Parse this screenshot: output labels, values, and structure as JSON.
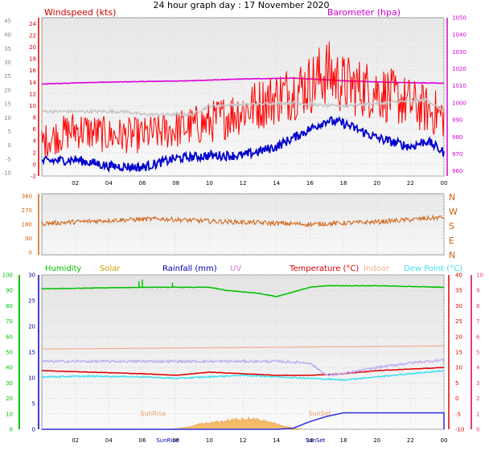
{
  "title": "24 hour graph day : 17 November 2020",
  "colors": {
    "wind": "#ff0000",
    "gust": "#0000cc",
    "baro": "#dd00dd",
    "avg": "#c8c8c8",
    "dir": "#d06010",
    "hum": "#00c000",
    "solar": "#c8a000",
    "rain": "#0000aa",
    "uv": "#e080e0",
    "temp": "#dd0000",
    "indoor": "#f0b090",
    "dew": "#40e0f0",
    "leftAxis": "#d00000",
    "rightAxis": "#d000d0",
    "panelBg": "#f0f0f0"
  },
  "chart_data": [
    {
      "type": "line",
      "title": "24 hour graph day : 17 November 2020",
      "x_ticks": [
        "02",
        "04",
        "06",
        "08",
        "10",
        "12",
        "14",
        "16",
        "18",
        "20",
        "22",
        "00"
      ],
      "left_axis": {
        "label": "Windspeed (kts)",
        "ticks": [
          "-2",
          "0",
          "2",
          "4",
          "6",
          "8",
          "10",
          "12",
          "14",
          "16",
          "18",
          "20",
          "22",
          "24"
        ],
        "range": [
          -2,
          25
        ]
      },
      "right_axis": {
        "label": "Barometer (hpa)",
        "ticks": [
          "960",
          "970",
          "980",
          "990",
          "1000",
          "1010",
          "1020",
          "1030",
          "1040",
          "1050"
        ],
        "range": [
          957,
          1050
        ]
      },
      "outer_left_ticks": [
        "-10",
        "-5",
        "0",
        "5",
        "10",
        "15",
        "20",
        "25",
        "30",
        "35",
        "40",
        "45"
      ],
      "series": [
        {
          "name": "Barometer",
          "axis": "right",
          "x": [
            0,
            3,
            6,
            9,
            12,
            15,
            18,
            21,
            24
          ],
          "y": [
            1011,
            1012,
            1012.5,
            1013,
            1014,
            1014.5,
            1013,
            1012,
            1011.5
          ]
        },
        {
          "name": "Windspeed",
          "axis": "left",
          "x": [
            0,
            2,
            4,
            6,
            8,
            10,
            12,
            14,
            16,
            17,
            18,
            20,
            22,
            24
          ],
          "y": [
            3,
            5,
            4,
            4,
            5,
            6,
            8,
            10,
            12,
            14,
            12,
            11,
            9,
            7
          ]
        },
        {
          "name": "Average",
          "axis": "left",
          "x": [
            0,
            5,
            6,
            9,
            10,
            15,
            17,
            18,
            23,
            24
          ],
          "y": [
            9,
            9,
            8.5,
            8.5,
            10,
            10.5,
            10,
            10,
            11,
            9
          ]
        },
        {
          "name": "Gust",
          "axis": "left",
          "x": [
            0,
            2,
            4,
            6,
            8,
            10,
            12,
            14,
            16,
            17,
            18,
            20,
            22,
            23,
            24
          ],
          "y": [
            0.5,
            0.8,
            -0.3,
            -0.5,
            1,
            1.5,
            1.5,
            3,
            6,
            7.5,
            7,
            4.5,
            3,
            4,
            2
          ]
        }
      ]
    },
    {
      "type": "line",
      "x_ticks": [],
      "left_ticks": [
        "0",
        "90",
        "180",
        "270",
        "360"
      ],
      "right_ticks": [
        "N",
        "W",
        "S",
        "E",
        "N"
      ],
      "range": [
        0,
        360
      ],
      "series": [
        {
          "name": "Wind Direction",
          "x": [
            0,
            4,
            7,
            10,
            13,
            16,
            20,
            24
          ],
          "y": [
            185,
            205,
            215,
            200,
            190,
            180,
            195,
            225
          ]
        }
      ]
    },
    {
      "type": "line",
      "x_ticks": [
        "02",
        "04",
        "06",
        "08",
        "10",
        "12",
        "14",
        "16",
        "18",
        "20",
        "22",
        "00"
      ],
      "legend": [
        "Humidity",
        "Solar",
        "Rainfall (mm)",
        "UV",
        "Temperature (°C)",
        "Indoor",
        "Dew Point (°C)"
      ],
      "left_axis": {
        "ticks": [
          "0",
          "5",
          "10",
          "15",
          "20",
          "25",
          "30"
        ],
        "range": [
          0,
          30
        ]
      },
      "outer_left_ticks": [
        "0",
        "10",
        "20",
        "30",
        "40",
        "50",
        "60",
        "70",
        "80",
        "90",
        "100"
      ],
      "right_axis": {
        "ticks": [
          "-10",
          "-5",
          "0",
          "5",
          "10",
          "15",
          "20",
          "25",
          "30",
          "35",
          "40"
        ],
        "range": [
          -10,
          40
        ]
      },
      "outer_right_ticks": [
        "0",
        "1",
        "2",
        "3",
        "4",
        "5",
        "6",
        "7",
        "8",
        "9",
        "10"
      ],
      "annotations": {
        "sunrise": "SunRise",
        "sunset": "SunSet",
        "sunrise_hour": 7.5,
        "sunset_hour": 16.3
      },
      "series": [
        {
          "name": "Humidity",
          "axis": "pct",
          "x": [
            0,
            6,
            8,
            10,
            11,
            12,
            13,
            14,
            15,
            16,
            17,
            18,
            20,
            24
          ],
          "y": [
            91,
            92,
            92,
            92,
            90,
            89,
            88,
            86,
            89,
            92,
            93,
            93,
            93,
            92
          ]
        },
        {
          "name": "Indoor",
          "axis": "temp",
          "x": [
            0,
            24
          ],
          "y": [
            16,
            17
          ]
        },
        {
          "name": "Temperature (°C)",
          "axis": "temp",
          "x": [
            0,
            3,
            6,
            8,
            10,
            12,
            14,
            16,
            18,
            20,
            22,
            24
          ],
          "y": [
            9,
            8.5,
            8,
            7.5,
            8.5,
            8,
            7.5,
            7.5,
            8,
            9,
            9.5,
            10
          ]
        },
        {
          "name": "Dew Point (°C)",
          "axis": "temp",
          "x": [
            0,
            3,
            6,
            8,
            10,
            12,
            14,
            16,
            18,
            20,
            22,
            24
          ],
          "y": [
            7,
            7.2,
            7,
            6.5,
            7,
            7.5,
            7,
            6.5,
            6,
            7,
            8,
            9
          ]
        },
        {
          "name": "UV",
          "axis": "uv",
          "x": [
            0,
            12,
            14,
            16,
            17,
            18,
            20,
            22,
            24
          ],
          "y": [
            4.4,
            4.4,
            4.4,
            4.3,
            3.5,
            3.6,
            4.0,
            4.3,
            4.5
          ]
        },
        {
          "name": "Rainfall (mm)",
          "axis": "rain",
          "x": [
            0,
            14,
            15,
            16,
            17,
            18,
            24
          ],
          "y": [
            0,
            0,
            0.2,
            1.5,
            2.5,
            3.2,
            3.2
          ]
        },
        {
          "name": "Solar",
          "axis": "solar",
          "x": [
            7.5,
            8.5,
            9.5,
            10.5,
            11.5,
            12,
            12.5,
            13,
            13.5,
            14,
            14.8,
            15.5
          ],
          "y": [
            0,
            0.3,
            1.0,
            1.4,
            1.8,
            2.2,
            1.9,
            1.7,
            1.5,
            1.0,
            0.4,
            0
          ]
        }
      ]
    }
  ]
}
